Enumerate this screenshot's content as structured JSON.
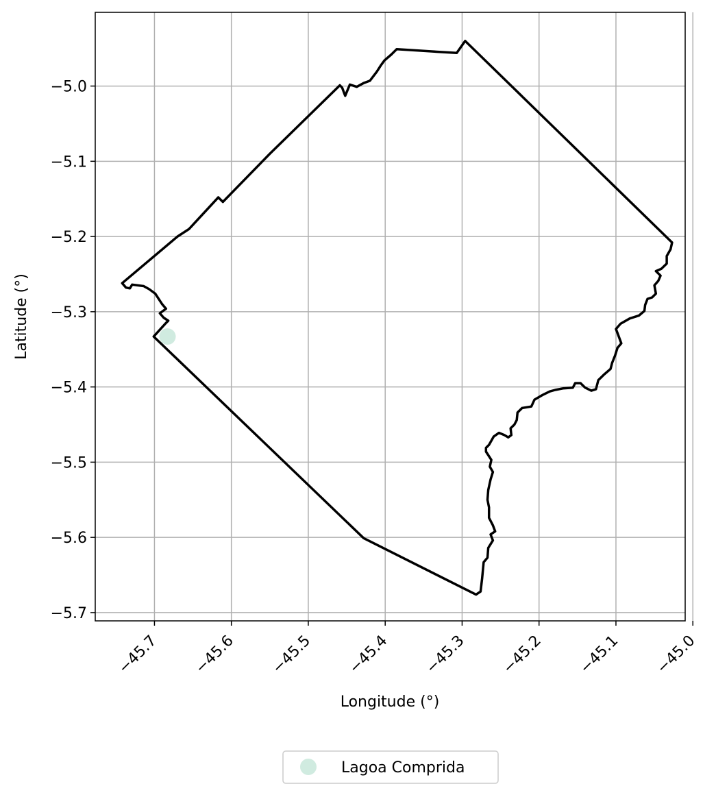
{
  "chart_data": {
    "type": "map",
    "xlabel": "Longitude (°)",
    "ylabel": "Latitude (°)",
    "xlim": [
      -45.777,
      -45.01
    ],
    "ylim": [
      -5.711,
      -4.902
    ],
    "grid": true,
    "x_ticks": [
      {
        "value": -45.7,
        "label": "−45.7"
      },
      {
        "value": -45.6,
        "label": "−45.6"
      },
      {
        "value": -45.5,
        "label": "−45.5"
      },
      {
        "value": -45.4,
        "label": "−45.4"
      },
      {
        "value": -45.3,
        "label": "−45.3"
      },
      {
        "value": -45.2,
        "label": "−45.2"
      },
      {
        "value": -45.1,
        "label": "−45.1"
      },
      {
        "value": -45.0,
        "label": "−45.0"
      }
    ],
    "y_ticks": [
      {
        "value": -5.0,
        "label": "−5.0"
      },
      {
        "value": -5.1,
        "label": "−5.1"
      },
      {
        "value": -5.2,
        "label": "−5.2"
      },
      {
        "value": -5.3,
        "label": "−5.3"
      },
      {
        "value": -5.4,
        "label": "−5.4"
      },
      {
        "value": -5.5,
        "label": "−5.5"
      },
      {
        "value": -5.6,
        "label": "−5.6"
      },
      {
        "value": -5.7,
        "label": "−5.7"
      }
    ],
    "boundary": [
      [
        -45.296,
        -4.94
      ],
      [
        -45.307,
        -4.956
      ],
      [
        -45.385,
        -4.951
      ],
      [
        -45.392,
        -4.958
      ],
      [
        -45.401,
        -4.966
      ],
      [
        -45.406,
        -4.973
      ],
      [
        -45.411,
        -4.981
      ],
      [
        -45.42,
        -4.993
      ],
      [
        -45.428,
        -4.996
      ],
      [
        -45.437,
        -5.001
      ],
      [
        -45.446,
        -4.998
      ],
      [
        -45.452,
        -5.013
      ],
      [
        -45.456,
        -5.002
      ],
      [
        -45.459,
        -4.999
      ],
      [
        -45.55,
        -5.09
      ],
      [
        -45.611,
        -5.154
      ],
      [
        -45.617,
        -5.148
      ],
      [
        -45.655,
        -5.19
      ],
      [
        -45.67,
        -5.2
      ],
      [
        -45.742,
        -5.262
      ],
      [
        -45.737,
        -5.268
      ],
      [
        -45.732,
        -5.269
      ],
      [
        -45.729,
        -5.264
      ],
      [
        -45.714,
        -5.266
      ],
      [
        -45.707,
        -5.27
      ],
      [
        -45.699,
        -5.276
      ],
      [
        -45.69,
        -5.29
      ],
      [
        -45.685,
        -5.296
      ],
      [
        -45.693,
        -5.302
      ],
      [
        -45.688,
        -5.308
      ],
      [
        -45.682,
        -5.312
      ],
      [
        -45.686,
        -5.316
      ],
      [
        -45.701,
        -5.333
      ],
      [
        -45.428,
        -5.601
      ],
      [
        -45.282,
        -5.676
      ],
      [
        -45.276,
        -5.672
      ],
      [
        -45.274,
        -5.655
      ],
      [
        -45.272,
        -5.633
      ],
      [
        -45.267,
        -5.627
      ],
      [
        -45.266,
        -5.614
      ],
      [
        -45.26,
        -5.604
      ],
      [
        -45.263,
        -5.596
      ],
      [
        -45.257,
        -5.592
      ],
      [
        -45.26,
        -5.584
      ],
      [
        -45.265,
        -5.574
      ],
      [
        -45.265,
        -5.56
      ],
      [
        -45.267,
        -5.55
      ],
      [
        -45.266,
        -5.537
      ],
      [
        -45.263,
        -5.523
      ],
      [
        -45.26,
        -5.513
      ],
      [
        -45.264,
        -5.506
      ],
      [
        -45.262,
        -5.497
      ],
      [
        -45.269,
        -5.486
      ],
      [
        -45.269,
        -5.481
      ],
      [
        -45.265,
        -5.477
      ],
      [
        -45.259,
        -5.466
      ],
      [
        -45.252,
        -5.461
      ],
      [
        -45.245,
        -5.464
      ],
      [
        -45.24,
        -5.467
      ],
      [
        -45.236,
        -5.464
      ],
      [
        -45.237,
        -5.455
      ],
      [
        -45.232,
        -5.45
      ],
      [
        -45.229,
        -5.444
      ],
      [
        -45.228,
        -5.434
      ],
      [
        -45.222,
        -5.428
      ],
      [
        -45.21,
        -5.426
      ],
      [
        -45.206,
        -5.417
      ],
      [
        -45.196,
        -5.411
      ],
      [
        -45.186,
        -5.406
      ],
      [
        -45.179,
        -5.404
      ],
      [
        -45.169,
        -5.402
      ],
      [
        -45.156,
        -5.401
      ],
      [
        -45.153,
        -5.395
      ],
      [
        -45.146,
        -5.395
      ],
      [
        -45.14,
        -5.401
      ],
      [
        -45.132,
        -5.405
      ],
      [
        -45.126,
        -5.403
      ],
      [
        -45.123,
        -5.391
      ],
      [
        -45.116,
        -5.384
      ],
      [
        -45.107,
        -5.376
      ],
      [
        -45.105,
        -5.368
      ],
      [
        -45.101,
        -5.358
      ],
      [
        -45.098,
        -5.348
      ],
      [
        -45.093,
        -5.342
      ],
      [
        -45.097,
        -5.331
      ],
      [
        -45.1,
        -5.323
      ],
      [
        -45.094,
        -5.316
      ],
      [
        -45.082,
        -5.309
      ],
      [
        -45.07,
        -5.305
      ],
      [
        -45.063,
        -5.299
      ],
      [
        -45.062,
        -5.291
      ],
      [
        -45.059,
        -5.283
      ],
      [
        -45.053,
        -5.281
      ],
      [
        -45.048,
        -5.276
      ],
      [
        -45.05,
        -5.265
      ],
      [
        -45.045,
        -5.259
      ],
      [
        -45.042,
        -5.252
      ],
      [
        -45.048,
        -5.246
      ],
      [
        -45.041,
        -5.243
      ],
      [
        -45.034,
        -5.236
      ],
      [
        -45.034,
        -5.226
      ],
      [
        -45.029,
        -5.217
      ],
      [
        -45.027,
        -5.208
      ],
      [
        -45.296,
        -4.94
      ]
    ],
    "points": [
      {
        "name": "Lagoa Comprida",
        "lon": -45.683,
        "lat": -5.333,
        "color": "#d0ebe0"
      }
    ],
    "boundary_color": "#000000",
    "legend_placement": "bottom-center",
    "legend": [
      {
        "label": "Lagoa Comprida",
        "color": "#d0ebe0"
      }
    ]
  }
}
